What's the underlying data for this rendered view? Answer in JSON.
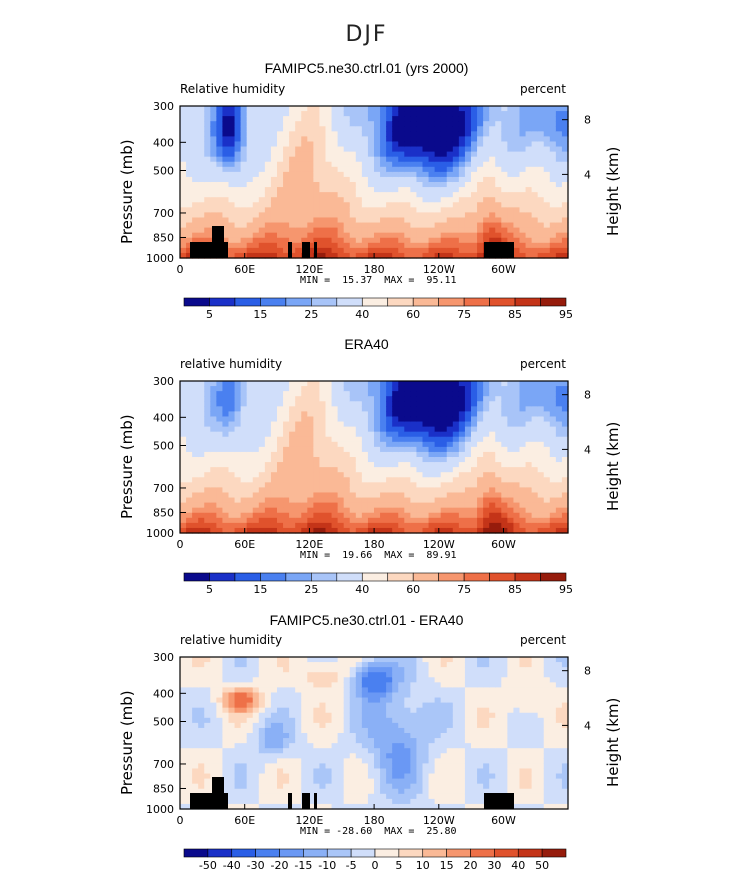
{
  "page_title": "DJF",
  "chart_data": [
    {
      "type": "heatmap",
      "title": "FAMIPC5.ne30.ctrl.01 (yrs 2000)",
      "left_string": "Relative humidity",
      "right_string": "percent",
      "ylabel": "Pressure (mb)",
      "y2label": "Height (km)",
      "yticks": [
        "300",
        "400",
        "500",
        "700",
        "850",
        "1000"
      ],
      "y2ticks": [
        "8",
        "4"
      ],
      "xticks": [
        "0",
        "60E",
        "120E",
        "180",
        "120W",
        "60W"
      ],
      "min_max": "MIN =  15.37  MAX =  95.11",
      "field": "full",
      "colorbar": {
        "labels": [
          "5",
          "15",
          "25",
          "40",
          "60",
          "75",
          "85",
          "95"
        ],
        "colors": [
          "#0a0a8c",
          "#1a30c8",
          "#2a5ee6",
          "#4a80f0",
          "#7aa6f6",
          "#a8c4f8",
          "#d0defa",
          "#fbeee2",
          "#fcd8c0",
          "#fab996",
          "#f6966e",
          "#ee7048",
          "#e0522c",
          "#c43418",
          "#961c0c"
        ]
      }
    },
    {
      "type": "heatmap",
      "title": "ERA40",
      "left_string": "relative humidity",
      "right_string": "percent",
      "ylabel": "Pressure (mb)",
      "y2label": "Height (km)",
      "yticks": [
        "300",
        "400",
        "500",
        "700",
        "850",
        "1000"
      ],
      "y2ticks": [
        "8",
        "4"
      ],
      "xticks": [
        "0",
        "60E",
        "120E",
        "180",
        "120W",
        "60W"
      ],
      "min_max": "MIN =  19.66  MAX =  89.91",
      "field": "full",
      "colorbar": {
        "labels": [
          "5",
          "15",
          "25",
          "40",
          "60",
          "75",
          "85",
          "95"
        ],
        "colors": [
          "#0a0a8c",
          "#1a30c8",
          "#2a5ee6",
          "#4a80f0",
          "#7aa6f6",
          "#a8c4f8",
          "#d0defa",
          "#fbeee2",
          "#fcd8c0",
          "#fab996",
          "#f6966e",
          "#ee7048",
          "#e0522c",
          "#c43418",
          "#961c0c"
        ]
      }
    },
    {
      "type": "heatmap",
      "title": "FAMIPC5.ne30.ctrl.01 - ERA40",
      "left_string": "relative humidity",
      "right_string": "percent",
      "ylabel": "Pressure (mb)",
      "y2label": "Height (km)",
      "yticks": [
        "300",
        "400",
        "500",
        "700",
        "850",
        "1000"
      ],
      "y2ticks": [
        "8",
        "4"
      ],
      "xticks": [
        "0",
        "60E",
        "120E",
        "180",
        "120W",
        "60W"
      ],
      "min_max": "MIN = -28.60  MAX =  25.80",
      "field": "diff",
      "colorbar": {
        "labels": [
          "-50",
          "-40",
          "-30",
          "-20",
          "-15",
          "-10",
          "-5",
          "0",
          "5",
          "10",
          "15",
          "20",
          "30",
          "40",
          "50"
        ],
        "colors": [
          "#0a0a8c",
          "#1a30c8",
          "#2a5ee6",
          "#4a80f0",
          "#6a98f4",
          "#8ab0f6",
          "#aac6f8",
          "#d0defa",
          "#fbeee2",
          "#fcd8c0",
          "#fab996",
          "#f6966e",
          "#ee7048",
          "#e0522c",
          "#c43418",
          "#961c0c"
        ]
      }
    }
  ]
}
